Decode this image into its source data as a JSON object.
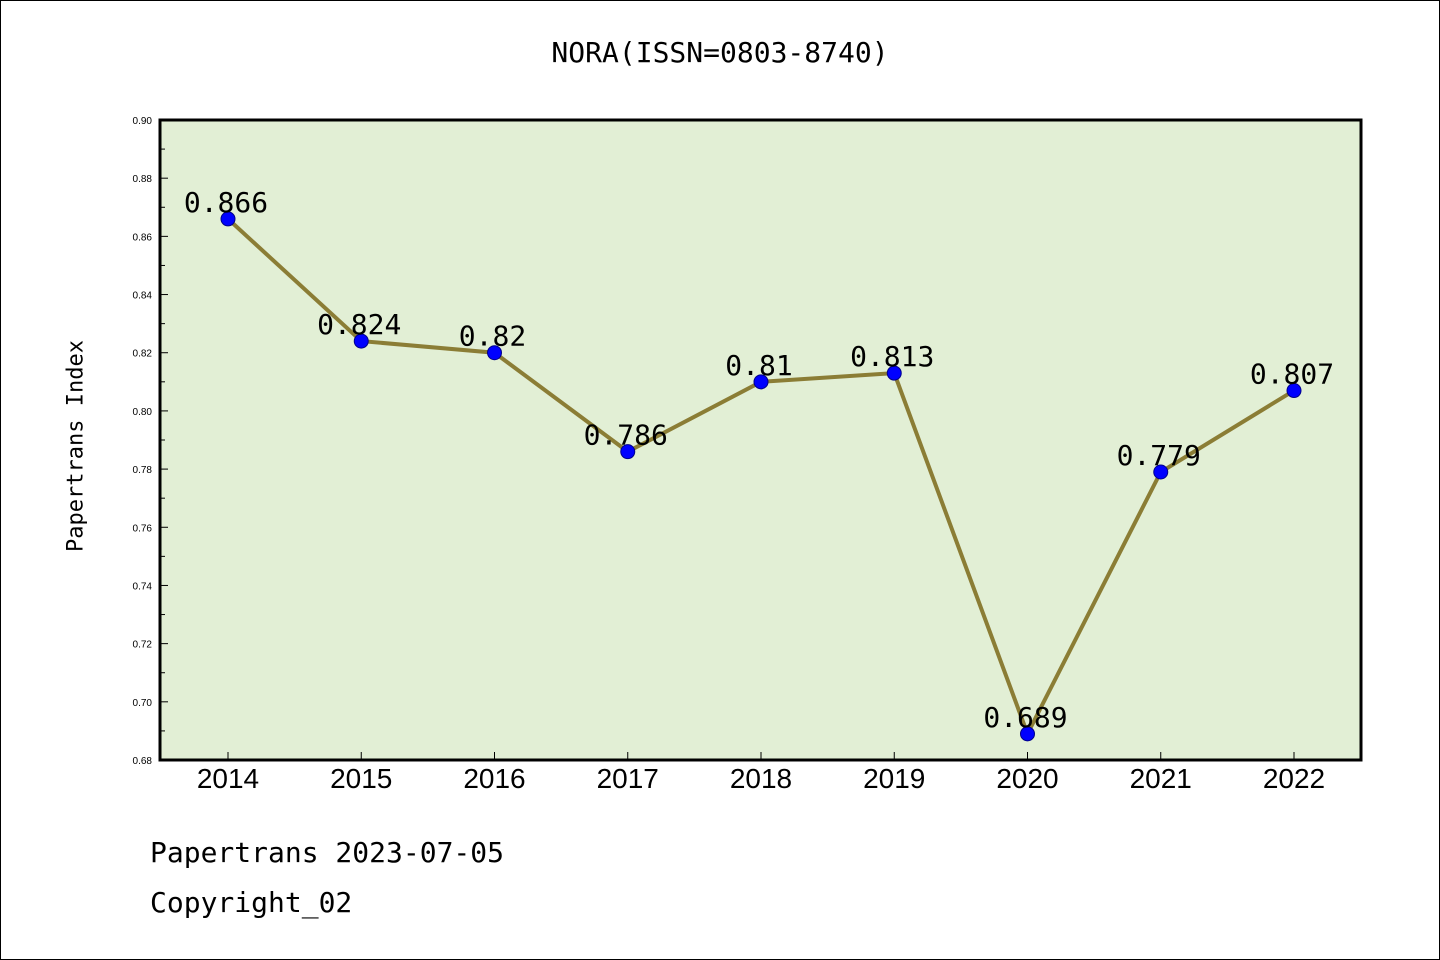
{
  "chart_data": {
    "type": "line",
    "title": "NORA(ISSN=0803-8740)",
    "xlabel": "",
    "ylabel": "Papertrans Index",
    "categories": [
      "2014",
      "2015",
      "2016",
      "2017",
      "2018",
      "2019",
      "2020",
      "2021",
      "2022"
    ],
    "series": [
      {
        "values": [
          0.866,
          0.824,
          0.82,
          0.786,
          0.81,
          0.813,
          0.689,
          0.779,
          0.807
        ],
        "labels": [
          "0.866",
          "0.824",
          "0.82",
          "0.786",
          "0.81",
          "0.813",
          "0.689",
          "0.779",
          "0.807"
        ]
      }
    ],
    "ylim": [
      0.68,
      0.9
    ],
    "yticks": [
      "0.68",
      "0.70",
      "0.72",
      "0.74",
      "0.76",
      "0.78",
      "0.80",
      "0.82",
      "0.84",
      "0.86",
      "0.88",
      "0.90"
    ],
    "grid": false,
    "colors": {
      "line": "#8B7D35",
      "marker": "#0000FF",
      "plot_bg": "#E2EFD5"
    }
  },
  "footer": {
    "date_line": "Papertrans 2023-07-05",
    "copyright": "Copyright_02"
  }
}
